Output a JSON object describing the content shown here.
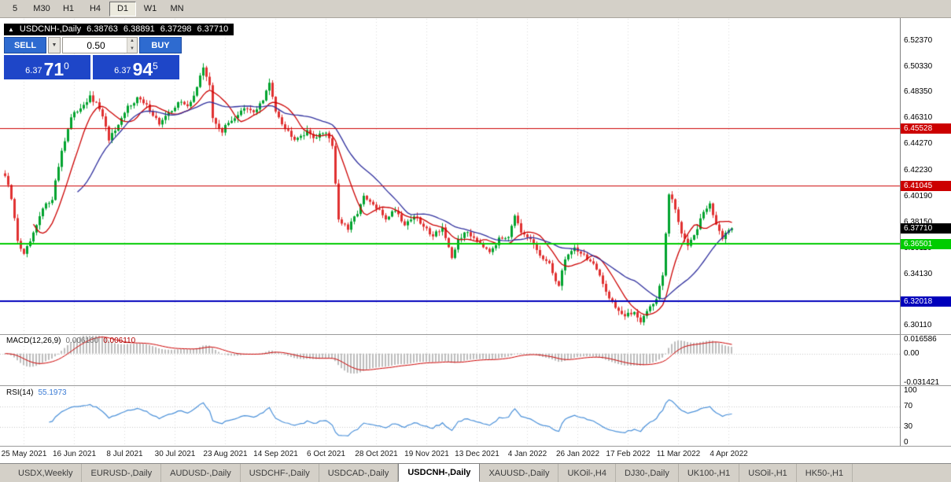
{
  "toolbar": {
    "timeframes": [
      {
        "label": "5",
        "active": false
      },
      {
        "label": "M30",
        "active": false
      },
      {
        "label": "H1",
        "active": false
      },
      {
        "label": "H4",
        "active": false
      },
      {
        "label": "D1",
        "active": true
      },
      {
        "label": "W1",
        "active": false
      },
      {
        "label": "MN",
        "active": false
      }
    ]
  },
  "chart": {
    "symbol_title": "USDCNH-,Daily",
    "ohlc": {
      "open": "6.38763",
      "high": "6.38891",
      "low": "6.37298",
      "close": "6.37710"
    },
    "trade_panel": {
      "sell": "SELL",
      "buy": "BUY",
      "volume": "0.50",
      "bid": {
        "prefix": "6.37",
        "big": "71",
        "sup": "0"
      },
      "ask": {
        "prefix": "6.37",
        "big": "94",
        "sup": "5"
      }
    },
    "price_axis": {
      "ticks": [
        {
          "label": "6.52370",
          "price": 6.5237
        },
        {
          "label": "6.50330",
          "price": 6.5033
        },
        {
          "label": "6.48350",
          "price": 6.4835
        },
        {
          "label": "6.46310",
          "price": 6.4631
        },
        {
          "label": "6.44270",
          "price": 6.4427
        },
        {
          "label": "6.42230",
          "price": 6.4223
        },
        {
          "label": "6.40190",
          "price": 6.4019
        },
        {
          "label": "6.38150",
          "price": 6.3815
        },
        {
          "label": "6.36110",
          "price": 6.3611
        },
        {
          "label": "6.34130",
          "price": 6.3413
        },
        {
          "label": "6.32090",
          "price": 6.3209
        },
        {
          "label": "6.30110",
          "price": 6.3011
        }
      ]
    },
    "levels": [
      {
        "label": "6.45528",
        "price": 6.45528,
        "color_key": "level_red",
        "width": 1
      },
      {
        "label": "6.41045",
        "price": 6.41045,
        "color_key": "level_red",
        "width": 1
      },
      {
        "label": "6.36501",
        "price": 6.36501,
        "color_key": "level_green",
        "width": 2
      },
      {
        "label": "6.32018",
        "price": 6.32018,
        "color_key": "level_blue",
        "width": 2
      }
    ],
    "current_price": {
      "label": "6.37710",
      "price": 6.3771
    },
    "candles": {
      "count": 232,
      "last_close": 6.3771,
      "anchors": [
        [
          0,
          6.418
        ],
        [
          2,
          6.4
        ],
        [
          4,
          6.368
        ],
        [
          6,
          6.356
        ],
        [
          9,
          6.372
        ],
        [
          12,
          6.392
        ],
        [
          15,
          6.401
        ],
        [
          18,
          6.438
        ],
        [
          21,
          6.463
        ],
        [
          24,
          6.472
        ],
        [
          27,
          6.479
        ],
        [
          30,
          6.471
        ],
        [
          33,
          6.447
        ],
        [
          36,
          6.456
        ],
        [
          39,
          6.472
        ],
        [
          42,
          6.479
        ],
        [
          46,
          6.47
        ],
        [
          49,
          6.459
        ],
        [
          52,
          6.466
        ],
        [
          55,
          6.476
        ],
        [
          58,
          6.472
        ],
        [
          61,
          6.487
        ],
        [
          63,
          6.503
        ],
        [
          65,
          6.489
        ],
        [
          66,
          6.462
        ],
        [
          69,
          6.453
        ],
        [
          72,
          6.462
        ],
        [
          76,
          6.47
        ],
        [
          79,
          6.468
        ],
        [
          82,
          6.477
        ],
        [
          84,
          6.49
        ],
        [
          86,
          6.47
        ],
        [
          89,
          6.455
        ],
        [
          92,
          6.448
        ],
        [
          96,
          6.452
        ],
        [
          99,
          6.448
        ],
        [
          102,
          6.453
        ],
        [
          104,
          6.442
        ],
        [
          106,
          6.384
        ],
        [
          109,
          6.376
        ],
        [
          112,
          6.39
        ],
        [
          114,
          6.401
        ],
        [
          117,
          6.395
        ],
        [
          121,
          6.385
        ],
        [
          124,
          6.392
        ],
        [
          127,
          6.38
        ],
        [
          130,
          6.387
        ],
        [
          133,
          6.378
        ],
        [
          136,
          6.372
        ],
        [
          139,
          6.378
        ],
        [
          142,
          6.352
        ],
        [
          144,
          6.369
        ],
        [
          147,
          6.374
        ],
        [
          151,
          6.366
        ],
        [
          154,
          6.36
        ],
        [
          157,
          6.368
        ],
        [
          160,
          6.372
        ],
        [
          162,
          6.388
        ],
        [
          164,
          6.372
        ],
        [
          167,
          6.368
        ],
        [
          170,
          6.356
        ],
        [
          173,
          6.348
        ],
        [
          176,
          6.332
        ],
        [
          178,
          6.354
        ],
        [
          181,
          6.362
        ],
        [
          184,
          6.356
        ],
        [
          187,
          6.349
        ],
        [
          191,
          6.328
        ],
        [
          194,
          6.316
        ],
        [
          197,
          6.308
        ],
        [
          200,
          6.312
        ],
        [
          202,
          6.305
        ],
        [
          205,
          6.316
        ],
        [
          207,
          6.322
        ],
        [
          209,
          6.34
        ],
        [
          211,
          6.404
        ],
        [
          213,
          6.392
        ],
        [
          215,
          6.372
        ],
        [
          217,
          6.365
        ],
        [
          220,
          6.378
        ],
        [
          222,
          6.39
        ],
        [
          224,
          6.395
        ],
        [
          226,
          6.381
        ],
        [
          228,
          6.369
        ],
        [
          231,
          6.3771
        ]
      ]
    }
  },
  "macd": {
    "label": "MACD(12,26,9)",
    "value_main": "0.006100",
    "value_signal": "0.006110",
    "axis": [
      "0.016586",
      "0.00",
      "-0.031421"
    ]
  },
  "rsi": {
    "label": "RSI(14)",
    "value": "55.1973",
    "axis": [
      "100",
      "70",
      "30",
      "0"
    ]
  },
  "dates": [
    {
      "label": "25 May 2021",
      "i": 6
    },
    {
      "label": "16 Jun 2021",
      "i": 22
    },
    {
      "label": "8 Jul 2021",
      "i": 38
    },
    {
      "label": "30 Jul 2021",
      "i": 54
    },
    {
      "label": "23 Aug 2021",
      "i": 70
    },
    {
      "label": "14 Sep 2021",
      "i": 86
    },
    {
      "label": "6 Oct 2021",
      "i": 102
    },
    {
      "label": "28 Oct 2021",
      "i": 118
    },
    {
      "label": "19 Nov 2021",
      "i": 134
    },
    {
      "label": "13 Dec 2021",
      "i": 150
    },
    {
      "label": "4 Jan 2022",
      "i": 166
    },
    {
      "label": "26 Jan 2022",
      "i": 182
    },
    {
      "label": "17 Feb 2022",
      "i": 198
    },
    {
      "label": "11 Mar 2022",
      "i": 214
    },
    {
      "label": "4 Apr 2022",
      "i": 230
    }
  ],
  "tabs": [
    {
      "label": "USDX,Weekly",
      "active": false
    },
    {
      "label": "EURUSD-,Daily",
      "active": false
    },
    {
      "label": "AUDUSD-,Daily",
      "active": false
    },
    {
      "label": "USDCHF-,Daily",
      "active": false
    },
    {
      "label": "USDCAD-,Daily",
      "active": false
    },
    {
      "label": "USDCNH-,Daily",
      "active": true
    },
    {
      "label": "XAUUSD-,Daily",
      "active": false
    },
    {
      "label": "UKOil-,H4",
      "active": false
    },
    {
      "label": "DJ30-,Daily",
      "active": false
    },
    {
      "label": "UK100-,H1",
      "active": false
    },
    {
      "label": "USOil-,H1",
      "active": false
    },
    {
      "label": "HK50-,H1",
      "active": false
    }
  ],
  "colors": {
    "up": "#00a32e",
    "down": "#e03131",
    "ma_fast": "#cc0000",
    "ma_slow": "#30309e",
    "level_red": "#cc0000",
    "level_green": "#00cc00",
    "level_blue": "#0000bb",
    "current": "#000000",
    "macd_hist": "#bdbdbd",
    "macd_signal": "#cc0000",
    "rsi_line": "#4a90d9",
    "grid": "rgba(120,120,120,0.25)"
  }
}
